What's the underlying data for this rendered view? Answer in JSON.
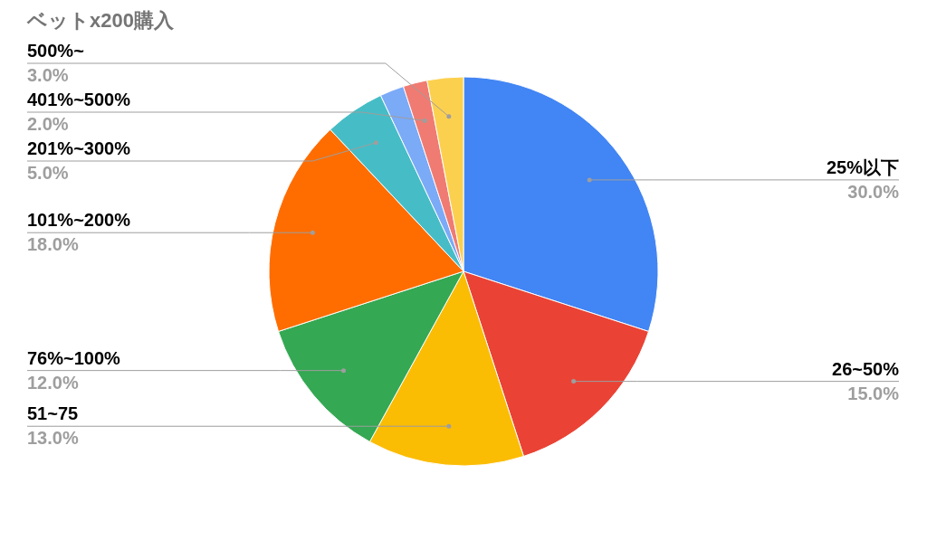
{
  "chart_data": {
    "type": "pie",
    "title": "ベットx200購入",
    "categories": [
      "25%以下",
      "26~50%",
      "51~75",
      "76%~100%",
      "101%~200%",
      "201%~300%",
      null,
      "401%~500%",
      "500%~"
    ],
    "values": [
      30,
      15,
      13,
      12,
      18,
      5,
      2,
      2,
      3
    ],
    "value_labels": [
      "30.0%",
      "15.0%",
      "13.0%",
      "12.0%",
      "18.0%",
      "5.0%",
      null,
      "2.0%",
      "3.0%"
    ],
    "colors": [
      "#4285f4",
      "#ea4335",
      "#fbbc04",
      "#34a853",
      "#ff6d01",
      "#46bdc6",
      "#7baaf7",
      "#f07b72",
      "#fcd04f"
    ],
    "legend": false
  }
}
